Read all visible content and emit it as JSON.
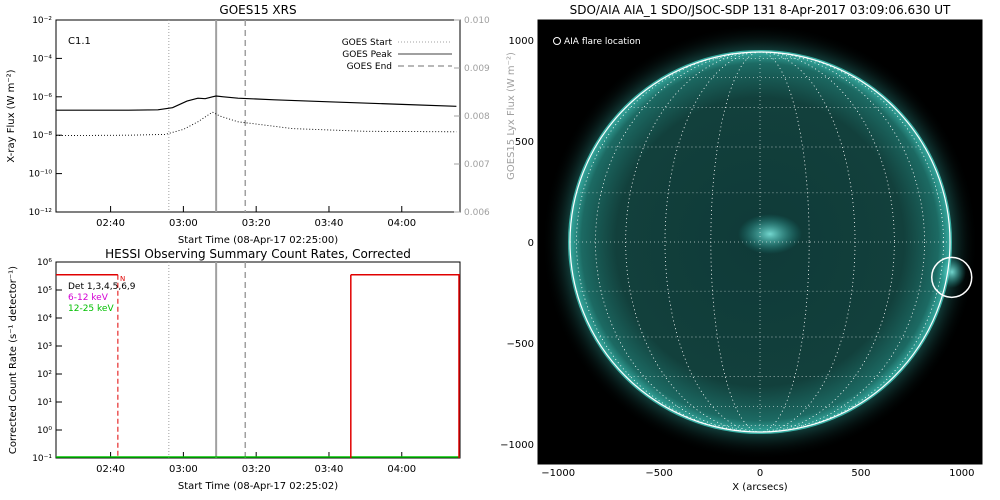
{
  "chart_data": [
    {
      "type": "line",
      "title": "GOES15 XRS",
      "xlabel": "Start Time (08-Apr-17 02:25:00)",
      "ylabel": "X-ray Flux (W m⁻²)",
      "ylabel_right": "GOES15 Lyx Flux (W m⁻²)",
      "ylog": true,
      "x_ticks": [
        "02:40",
        "03:00",
        "03:20",
        "03:40",
        "04:00"
      ],
      "y_ticks": [
        "10⁻¹²",
        "10⁻¹⁰",
        "10⁻⁸",
        "10⁻⁶",
        "10⁻⁴",
        "10⁻²"
      ],
      "y_ticks_right": [
        "0.006",
        "0.007",
        "0.008",
        "0.009",
        "0.010"
      ],
      "flare_class": "C1.1",
      "legend": [
        "GOES Start",
        "GOES Peak",
        "GOES End"
      ],
      "legend_position": "top-right",
      "events": {
        "start": "02:56",
        "peak": "03:09",
        "end": "03:17"
      },
      "series": [
        {
          "x": [
            "02:25",
            "02:45",
            "02:53",
            "02:57",
            "03:01",
            "03:04",
            "03:06",
            "03:08",
            "03:09",
            "03:11",
            "03:15",
            "03:25",
            "03:40",
            "04:00",
            "04:15"
          ],
          "values": [
            2e-07,
            2e-07,
            2.1e-07,
            2.7e-07,
            6e-07,
            8.5e-07,
            8e-07,
            1e-06,
            1.1e-06,
            1e-06,
            8.5e-07,
            7e-07,
            5.5e-07,
            4e-07,
            3.2e-07
          ]
        },
        {
          "x": [
            "02:25",
            "02:45",
            "02:55",
            "03:00",
            "03:04",
            "03:08",
            "03:10",
            "03:15",
            "03:30",
            "03:50",
            "04:15"
          ],
          "values": [
            9.5e-09,
            1e-08,
            1.1e-08,
            2e-08,
            5e-08,
            1.6e-07,
            1e-07,
            5e-08,
            2.2e-08,
            1.6e-08,
            1.5e-08
          ]
        }
      ]
    },
    {
      "type": "line",
      "title": "HESSI Observing Summary Count Rates, Corrected",
      "xlabel": "Start Time (08-Apr-17 02:25:02)",
      "ylabel": "Corrected Count Rate (s⁻¹ detector⁻¹)",
      "ylog": true,
      "x_ticks": [
        "02:40",
        "03:00",
        "03:20",
        "03:40",
        "04:00"
      ],
      "y_ticks": [
        "10⁻¹",
        "10⁰",
        "10¹",
        "10²",
        "10³",
        "10⁴",
        "10⁵",
        "10⁶"
      ],
      "legend": [
        "Det 1,3,4,5,6,9",
        "6-12 keV",
        "12-25 keV"
      ],
      "legend_colors": [
        "#000000",
        "#d400d4",
        "#00c000"
      ],
      "marker": "N",
      "series": [
        {
          "name": "6-12 keV",
          "segments": [
            {
              "x": [
                "02:25",
                "02:42"
              ],
              "values": [
                350000.0,
                350000.0
              ]
            },
            {
              "x": [
                "03:46",
                "04:16"
              ],
              "values": [
                350000.0,
                350000.0
              ]
            }
          ]
        }
      ]
    },
    {
      "type": "image",
      "title": "SDO/AIA AIA_1 SDO/JSOC-SDP 131  8-Apr-2017 03:09:06.630 UT",
      "xlabel": "X (arcsecs)",
      "ylabel": "Y (arcsecs)",
      "xlim": [
        -1100,
        1100
      ],
      "ylim": [
        -1100,
        1100
      ],
      "x_ticks": [
        "−1000",
        "−500",
        "0",
        "500",
        "1000"
      ],
      "y_ticks": [
        "1000",
        "500",
        "0",
        "−500",
        "−1000"
      ],
      "legend": "AIA flare location",
      "flare_location": [
        950,
        -175
      ]
    }
  ],
  "colors": {
    "aia_teal": "#22a9a2",
    "rhessi_red": "#e00000",
    "goes_grey": "#a0a0a0"
  }
}
